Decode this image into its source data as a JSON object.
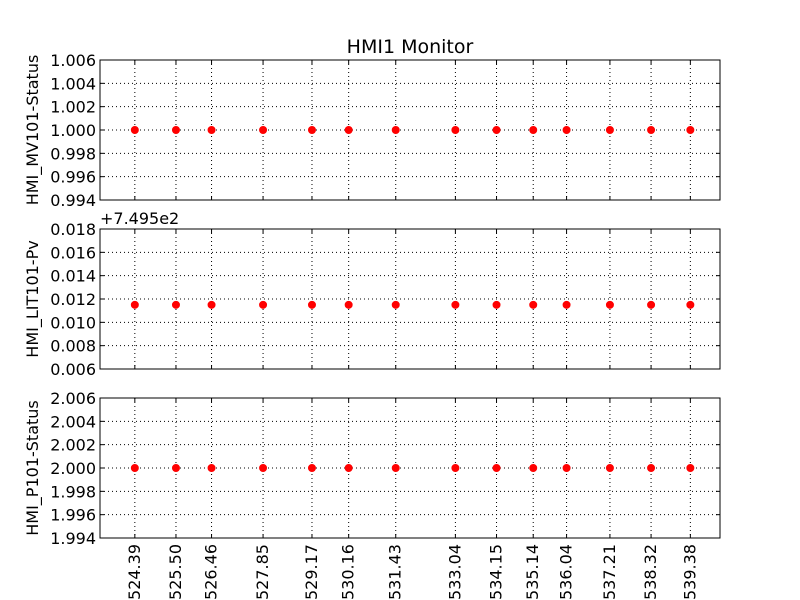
{
  "chart_data": {
    "type": "scatter",
    "title": "HMI1 Monitor",
    "marker_color": "#ff0000",
    "x": [
      524.39,
      525.5,
      526.46,
      527.85,
      529.17,
      530.16,
      531.43,
      533.04,
      534.15,
      535.14,
      536.04,
      537.21,
      538.32,
      539.38
    ],
    "x_tick_labels": [
      "524.39",
      "525.50",
      "526.46",
      "527.85",
      "529.17",
      "530.16",
      "531.43",
      "533.04",
      "534.15",
      "535.14",
      "536.04",
      "537.21",
      "538.32",
      "539.38"
    ],
    "xlim": [
      523.45,
      540.18
    ],
    "grid": true,
    "panels": [
      {
        "ylabel": "HMI_MV101-Status",
        "ylim": [
          0.994,
          1.006
        ],
        "y_ticks": [
          0.994,
          0.996,
          0.998,
          1.0,
          1.002,
          1.004,
          1.006
        ],
        "y_tick_labels": [
          "0.994",
          "0.996",
          "0.998",
          "1.000",
          "1.002",
          "1.004",
          "1.006"
        ],
        "offset_text": "",
        "values": [
          1,
          1,
          1,
          1,
          1,
          1,
          1,
          1,
          1,
          1,
          1,
          1,
          1,
          1
        ]
      },
      {
        "ylabel": "HMI_LIT101-Pv",
        "ylim": [
          0.006,
          0.018
        ],
        "y_ticks": [
          0.006,
          0.008,
          0.01,
          0.012,
          0.014,
          0.016,
          0.018
        ],
        "y_tick_labels": [
          "0.006",
          "0.008",
          "0.010",
          "0.012",
          "0.014",
          "0.016",
          "0.018"
        ],
        "offset_text": "+7.495e2",
        "values": [
          0.0115,
          0.0115,
          0.0115,
          0.0115,
          0.0115,
          0.0115,
          0.0115,
          0.0115,
          0.0115,
          0.0115,
          0.0115,
          0.0115,
          0.0115,
          0.0115
        ]
      },
      {
        "ylabel": "HMI_P101-Status",
        "ylim": [
          1.994,
          2.006
        ],
        "y_ticks": [
          1.994,
          1.996,
          1.998,
          2.0,
          2.002,
          2.004,
          2.006
        ],
        "y_tick_labels": [
          "1.994",
          "1.996",
          "1.998",
          "2.000",
          "2.002",
          "2.004",
          "2.006"
        ],
        "offset_text": "",
        "values": [
          2,
          2,
          2,
          2,
          2,
          2,
          2,
          2,
          2,
          2,
          2,
          2,
          2,
          2
        ]
      }
    ]
  }
}
